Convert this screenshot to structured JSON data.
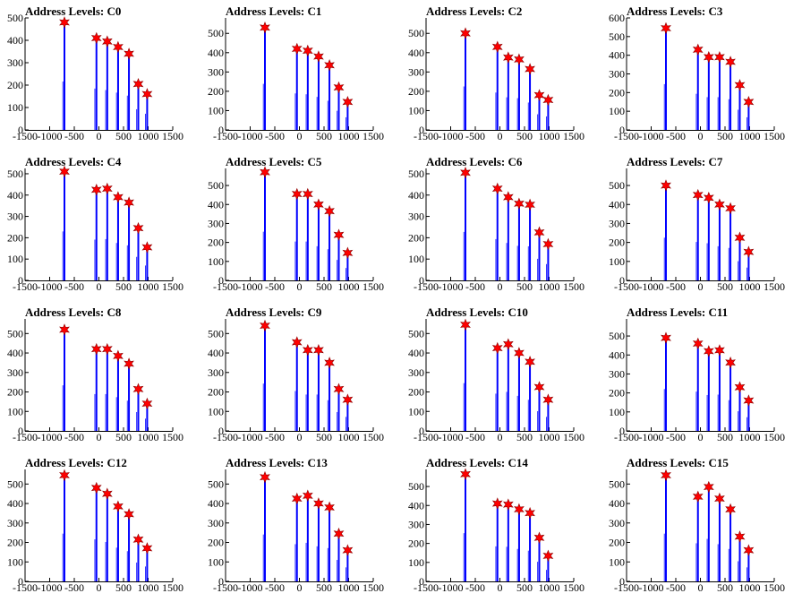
{
  "colors": {
    "spike": "#0000ff",
    "marker": "#ff0000",
    "axis": "#000000"
  },
  "chart_data": [
    {
      "type": "histogram",
      "title": "Address Levels: C0",
      "xlim": [
        -1500,
        1500
      ],
      "ylim": [
        0,
        500
      ],
      "xticks": [
        -1500,
        -1000,
        -500,
        0,
        500,
        1000,
        1500
      ],
      "xtick_labels": [
        "-1500",
        "-1000",
        "-500",
        "0",
        "500",
        "1000",
        "1500"
      ],
      "yticks": [
        0,
        100,
        200,
        300,
        400,
        500
      ],
      "peaks": [
        {
          "x": -700,
          "y": 480
        },
        {
          "x": -50,
          "y": 410
        },
        {
          "x": 170,
          "y": 395
        },
        {
          "x": 390,
          "y": 370
        },
        {
          "x": 610,
          "y": 340
        },
        {
          "x": 800,
          "y": 205
        },
        {
          "x": 980,
          "y": 160
        }
      ]
    },
    {
      "type": "histogram",
      "title": "Address Levels: C1",
      "xlim": [
        -1500,
        1500
      ],
      "ylim": [
        0,
        580
      ],
      "xticks": [
        -1500,
        -1000,
        -500,
        0,
        500,
        1000,
        1500
      ],
      "xtick_labels": [
        "-1500",
        "-1000",
        "-500",
        "0",
        "500",
        "1000",
        "1500"
      ],
      "yticks": [
        0,
        100,
        200,
        300,
        400,
        500
      ],
      "peaks": [
        {
          "x": -700,
          "y": 530
        },
        {
          "x": -50,
          "y": 420
        },
        {
          "x": 170,
          "y": 410
        },
        {
          "x": 390,
          "y": 380
        },
        {
          "x": 610,
          "y": 335
        },
        {
          "x": 800,
          "y": 220
        },
        {
          "x": 980,
          "y": 145
        }
      ]
    },
    {
      "type": "histogram",
      "title": "Address Levels: C2",
      "xlim": [
        -1500,
        1500
      ],
      "ylim": [
        0,
        580
      ],
      "xticks": [
        -1500,
        -1000,
        -500,
        0,
        500,
        1000,
        1500
      ],
      "xtick_labels": [
        "-1500",
        "-1000",
        "-500",
        "0",
        "500",
        "1000",
        "1500"
      ],
      "yticks": [
        0,
        100,
        200,
        300,
        400,
        500
      ],
      "peaks": [
        {
          "x": -700,
          "y": 500
        },
        {
          "x": -50,
          "y": 430
        },
        {
          "x": 170,
          "y": 375
        },
        {
          "x": 390,
          "y": 365
        },
        {
          "x": 610,
          "y": 315
        },
        {
          "x": 800,
          "y": 180
        },
        {
          "x": 980,
          "y": 155
        }
      ]
    },
    {
      "type": "histogram",
      "title": "Address Levels: C3",
      "xlim": [
        -1500,
        1500
      ],
      "ylim": [
        0,
        600
      ],
      "xticks": [
        -1500,
        -1000,
        -500,
        0,
        500,
        1000,
        1500
      ],
      "xtick_labels": [
        "-1500",
        "-1000",
        "-500",
        "0",
        "500",
        "1000",
        "1500"
      ],
      "yticks": [
        0,
        100,
        200,
        300,
        400,
        500,
        600
      ],
      "peaks": [
        {
          "x": -700,
          "y": 545
        },
        {
          "x": -50,
          "y": 430
        },
        {
          "x": 170,
          "y": 390
        },
        {
          "x": 390,
          "y": 390
        },
        {
          "x": 610,
          "y": 365
        },
        {
          "x": 800,
          "y": 240
        },
        {
          "x": 980,
          "y": 150
        }
      ]
    },
    {
      "type": "histogram",
      "title": "Address Levels: C4",
      "xlim": [
        -1500,
        1500
      ],
      "ylim": [
        0,
        525
      ],
      "xticks": [
        -1500,
        -1000,
        -500,
        0,
        500,
        1000,
        1500
      ],
      "xtick_labels": [
        "-1500",
        "-1000",
        "-500",
        "0",
        "500",
        "1000",
        "1500"
      ],
      "yticks": [
        0,
        100,
        200,
        300,
        400,
        500
      ],
      "peaks": [
        {
          "x": -700,
          "y": 510
        },
        {
          "x": -50,
          "y": 425
        },
        {
          "x": 170,
          "y": 430
        },
        {
          "x": 390,
          "y": 390
        },
        {
          "x": 610,
          "y": 365
        },
        {
          "x": 800,
          "y": 245
        },
        {
          "x": 980,
          "y": 155
        }
      ]
    },
    {
      "type": "histogram",
      "title": "Address Levels: C5",
      "xlim": [
        -1500,
        1500
      ],
      "ylim": [
        0,
        590
      ],
      "xticks": [
        -1500,
        -1000,
        -500,
        0,
        500,
        1000,
        1500
      ],
      "xtick_labels": [
        "-1500",
        "-1000",
        "-500",
        "0",
        "500",
        "1000",
        "1500"
      ],
      "yticks": [
        0,
        100,
        200,
        300,
        400,
        500
      ],
      "peaks": [
        {
          "x": -700,
          "y": 570
        },
        {
          "x": -50,
          "y": 455
        },
        {
          "x": 170,
          "y": 455
        },
        {
          "x": 390,
          "y": 400
        },
        {
          "x": 610,
          "y": 365
        },
        {
          "x": 800,
          "y": 240
        },
        {
          "x": 980,
          "y": 145
        }
      ]
    },
    {
      "type": "histogram",
      "title": "Address Levels: C6",
      "xlim": [
        -1500,
        1500
      ],
      "ylim": [
        0,
        525
      ],
      "xticks": [
        -1500,
        -1000,
        -500,
        0,
        500,
        1000,
        1500
      ],
      "xtick_labels": [
        "-1500",
        "-1000",
        "-500",
        "0",
        "500",
        "1000",
        "1500"
      ],
      "yticks": [
        0,
        100,
        200,
        300,
        400,
        500
      ],
      "peaks": [
        {
          "x": -700,
          "y": 505
        },
        {
          "x": -50,
          "y": 430
        },
        {
          "x": 170,
          "y": 390
        },
        {
          "x": 390,
          "y": 360
        },
        {
          "x": 610,
          "y": 355
        },
        {
          "x": 800,
          "y": 225
        },
        {
          "x": 980,
          "y": 170
        }
      ]
    },
    {
      "type": "histogram",
      "title": "Address Levels: C7",
      "xlim": [
        -1500,
        1500
      ],
      "ylim": [
        0,
        590
      ],
      "xticks": [
        -1500,
        -1000,
        -500,
        0,
        500,
        1000,
        1500
      ],
      "xtick_labels": [
        "-1500",
        "-1000",
        "-500",
        "0",
        "500",
        "1000",
        "1500"
      ],
      "yticks": [
        0,
        100,
        200,
        300,
        400,
        500
      ],
      "peaks": [
        {
          "x": -700,
          "y": 500
        },
        {
          "x": -50,
          "y": 450
        },
        {
          "x": 170,
          "y": 435
        },
        {
          "x": 390,
          "y": 400
        },
        {
          "x": 610,
          "y": 380
        },
        {
          "x": 800,
          "y": 225
        },
        {
          "x": 980,
          "y": 150
        }
      ]
    },
    {
      "type": "histogram",
      "title": "Address Levels: C8",
      "xlim": [
        -1500,
        1500
      ],
      "ylim": [
        0,
        575
      ],
      "xticks": [
        -1500,
        -1000,
        -500,
        0,
        500,
        1000,
        1500
      ],
      "xtick_labels": [
        "-1500",
        "-1000",
        "-500",
        "0",
        "500",
        "1000",
        "1500"
      ],
      "yticks": [
        0,
        100,
        200,
        300,
        400,
        500
      ],
      "peaks": [
        {
          "x": -700,
          "y": 520
        },
        {
          "x": -50,
          "y": 420
        },
        {
          "x": 170,
          "y": 420
        },
        {
          "x": 390,
          "y": 385
        },
        {
          "x": 610,
          "y": 345
        },
        {
          "x": 800,
          "y": 215
        },
        {
          "x": 980,
          "y": 140
        }
      ]
    },
    {
      "type": "histogram",
      "title": "Address Levels: C9",
      "xlim": [
        -1500,
        1500
      ],
      "ylim": [
        0,
        575
      ],
      "xticks": [
        -1500,
        -1000,
        -500,
        0,
        500,
        1000,
        1500
      ],
      "xtick_labels": [
        "-1500",
        "-1000",
        "-500",
        "0",
        "500",
        "1000",
        "1500"
      ],
      "yticks": [
        0,
        100,
        200,
        300,
        400,
        500
      ],
      "peaks": [
        {
          "x": -700,
          "y": 540
        },
        {
          "x": -50,
          "y": 455
        },
        {
          "x": 170,
          "y": 415
        },
        {
          "x": 390,
          "y": 415
        },
        {
          "x": 610,
          "y": 350
        },
        {
          "x": 800,
          "y": 215
        },
        {
          "x": 980,
          "y": 160
        }
      ]
    },
    {
      "type": "histogram",
      "title": "Address Levels: C10",
      "xlim": [
        -1500,
        1500
      ],
      "ylim": [
        0,
        575
      ],
      "xticks": [
        -1500,
        -1000,
        -500,
        0,
        500,
        1000,
        1500
      ],
      "xtick_labels": [
        "-1500",
        "-1000",
        "-500",
        "0",
        "500",
        "1000",
        "1500"
      ],
      "yticks": [
        0,
        100,
        200,
        300,
        400,
        500
      ],
      "peaks": [
        {
          "x": -700,
          "y": 545
        },
        {
          "x": -50,
          "y": 425
        },
        {
          "x": 170,
          "y": 445
        },
        {
          "x": 390,
          "y": 400
        },
        {
          "x": 610,
          "y": 355
        },
        {
          "x": 800,
          "y": 225
        },
        {
          "x": 980,
          "y": 160
        }
      ]
    },
    {
      "type": "histogram",
      "title": "Address Levels: C11",
      "xlim": [
        -1500,
        1500
      ],
      "ylim": [
        0,
        590
      ],
      "xticks": [
        -1500,
        -1000,
        -500,
        0,
        500,
        1000,
        1500
      ],
      "xtick_labels": [
        "-1500",
        "-1000",
        "-500",
        "0",
        "500",
        "1000",
        "1500"
      ],
      "yticks": [
        0,
        100,
        200,
        300,
        400,
        500
      ],
      "peaks": [
        {
          "x": -700,
          "y": 490
        },
        {
          "x": -50,
          "y": 460
        },
        {
          "x": 170,
          "y": 420
        },
        {
          "x": 390,
          "y": 425
        },
        {
          "x": 610,
          "y": 360
        },
        {
          "x": 800,
          "y": 230
        },
        {
          "x": 980,
          "y": 160
        }
      ]
    },
    {
      "type": "histogram",
      "title": "Address Levels: C12",
      "xlim": [
        -1500,
        1500
      ],
      "ylim": [
        0,
        575
      ],
      "xticks": [
        -1500,
        -1000,
        -500,
        0,
        500,
        1000,
        1500
      ],
      "xtick_labels": [
        "-1500",
        "-1000",
        "-500",
        "0",
        "500",
        "1000",
        "1500"
      ],
      "yticks": [
        0,
        100,
        200,
        300,
        400,
        500
      ],
      "peaks": [
        {
          "x": -700,
          "y": 545
        },
        {
          "x": -50,
          "y": 480
        },
        {
          "x": 170,
          "y": 450
        },
        {
          "x": 390,
          "y": 385
        },
        {
          "x": 610,
          "y": 345
        },
        {
          "x": 800,
          "y": 215
        },
        {
          "x": 980,
          "y": 170
        }
      ]
    },
    {
      "type": "histogram",
      "title": "Address Levels: C13",
      "xlim": [
        -1500,
        1500
      ],
      "ylim": [
        0,
        575
      ],
      "xticks": [
        -1500,
        -1000,
        -500,
        0,
        500,
        1000,
        1500
      ],
      "xtick_labels": [
        "-1500",
        "-1000",
        "-500",
        "0",
        "500",
        "1000",
        "1500"
      ],
      "yticks": [
        0,
        100,
        200,
        300,
        400,
        500
      ],
      "peaks": [
        {
          "x": -700,
          "y": 535
        },
        {
          "x": -50,
          "y": 425
        },
        {
          "x": 170,
          "y": 440
        },
        {
          "x": 390,
          "y": 400
        },
        {
          "x": 610,
          "y": 380
        },
        {
          "x": 800,
          "y": 245
        },
        {
          "x": 980,
          "y": 160
        }
      ]
    },
    {
      "type": "histogram",
      "title": "Address Levels: C14",
      "xlim": [
        -1500,
        1500
      ],
      "ylim": [
        0,
        590
      ],
      "xticks": [
        -1500,
        -1000,
        -500,
        0,
        500,
        1000,
        1500
      ],
      "xtick_labels": [
        "-1500",
        "-1000",
        "-500",
        "0",
        "500",
        "1000",
        "1500"
      ],
      "yticks": [
        0,
        100,
        200,
        300,
        400,
        500
      ],
      "peaks": [
        {
          "x": -700,
          "y": 565
        },
        {
          "x": -50,
          "y": 410
        },
        {
          "x": 170,
          "y": 405
        },
        {
          "x": 390,
          "y": 380
        },
        {
          "x": 610,
          "y": 360
        },
        {
          "x": 800,
          "y": 230
        },
        {
          "x": 980,
          "y": 135
        }
      ]
    },
    {
      "type": "histogram",
      "title": "Address Levels: C15",
      "xlim": [
        -1500,
        1500
      ],
      "ylim": [
        0,
        575
      ],
      "xticks": [
        -1500,
        -1000,
        -500,
        0,
        500,
        1000,
        1500
      ],
      "xtick_labels": [
        "-1500",
        "-1000",
        "-500",
        "0",
        "500",
        "1000",
        "1500"
      ],
      "yticks": [
        0,
        100,
        200,
        300,
        400,
        500
      ],
      "peaks": [
        {
          "x": -700,
          "y": 545
        },
        {
          "x": -50,
          "y": 435
        },
        {
          "x": 170,
          "y": 485
        },
        {
          "x": 390,
          "y": 425
        },
        {
          "x": 610,
          "y": 370
        },
        {
          "x": 800,
          "y": 230
        },
        {
          "x": 980,
          "y": 160
        }
      ]
    }
  ]
}
